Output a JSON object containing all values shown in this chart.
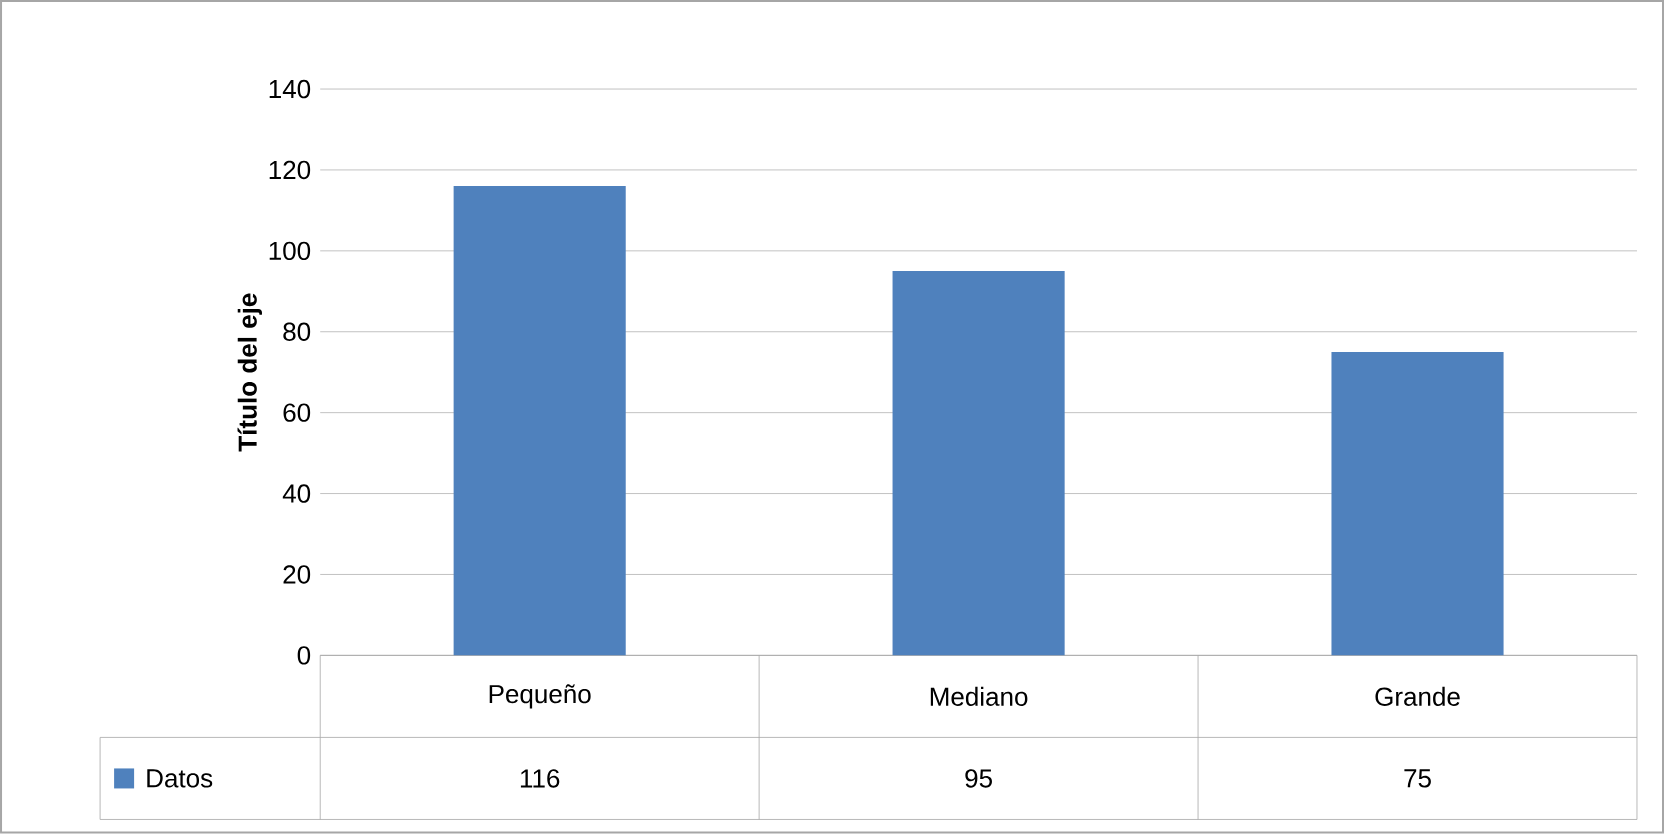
{
  "chart_data": {
    "type": "bar",
    "ylabel": "Título del eje",
    "categories": [
      "Pequeño",
      "Mediano",
      "Grande"
    ],
    "series": [
      {
        "name": "Datos",
        "color": "#4f81bd",
        "values": [
          116,
          95,
          75
        ]
      }
    ],
    "ylim": [
      0,
      140
    ],
    "yticks": [
      0,
      20,
      40,
      60,
      80,
      100,
      120,
      140
    ],
    "grid": "y",
    "data_labels": true,
    "legend": "bottom"
  }
}
